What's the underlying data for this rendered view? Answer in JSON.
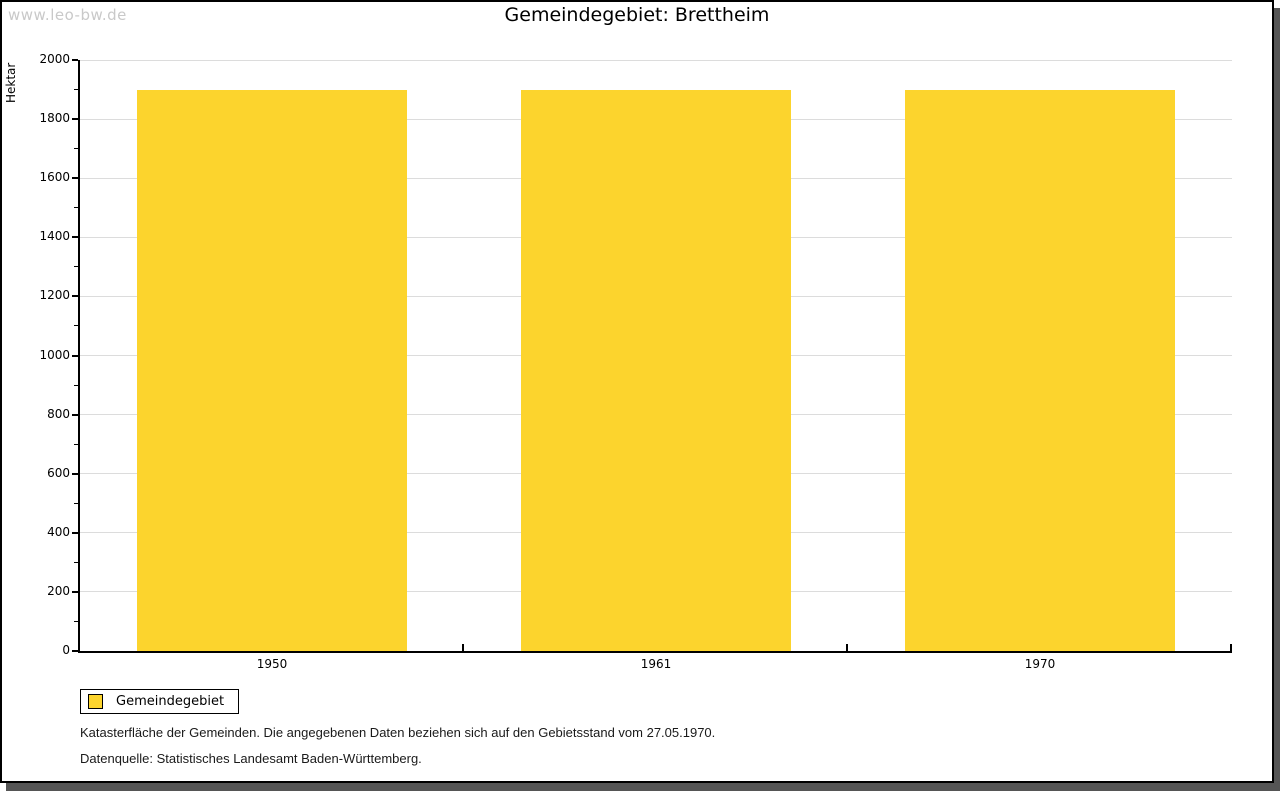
{
  "page": {
    "watermark": "www.leo-bw.de"
  },
  "chart_data": {
    "type": "bar",
    "title": "Gemeindegebiet: Brettheim",
    "categories": [
      "1950",
      "1961",
      "1970"
    ],
    "series": [
      {
        "name": "Gemeindegebiet",
        "color": "#FCD42D",
        "values": [
          1897,
          1897,
          1897
        ]
      }
    ],
    "xlabel": "",
    "ylabel": "Hektar",
    "ylim": [
      0,
      2000
    ],
    "ytick_step": 200,
    "yminor_step": 100,
    "grid": true,
    "legend_position": "bottom-left"
  },
  "legend": {
    "items": [
      {
        "label": "Gemeindegebiet",
        "color": "#FCD42D"
      }
    ]
  },
  "notes": {
    "line1": "Katasterfläche der Gemeinden. Die angegebenen Daten beziehen sich auf den Gebietsstand vom 27.05.1970.",
    "line2": "Datenquelle: Statistisches Landesamt Baden-Württemberg."
  },
  "colors": {
    "bar": "#FCD42D",
    "gridline": "#DCDCDC",
    "axis": "#000000",
    "frame_border": "#000000",
    "frame_shadow": "#555555",
    "watermark": "#C9C9C9",
    "text": "#1A1A1A"
  }
}
